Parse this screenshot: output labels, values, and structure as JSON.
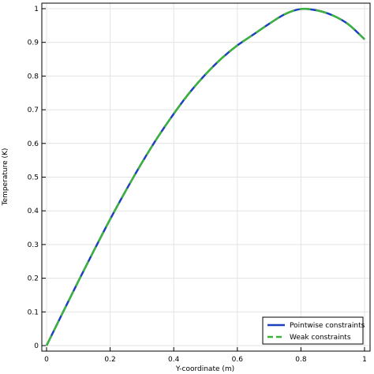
{
  "chart_data": {
    "type": "line",
    "title": "",
    "xlabel": "Y-coordinate (m)",
    "ylabel": "Temperature (K)",
    "xlim": [
      0,
      1
    ],
    "ylim": [
      0,
      1
    ],
    "x_ticks": [
      "0",
      "0.2",
      "0.4",
      "0.6",
      "0.8",
      "1"
    ],
    "y_ticks": [
      "0",
      "0.1",
      "0.2",
      "0.3",
      "0.4",
      "0.5",
      "0.6",
      "0.7",
      "0.8",
      "0.9",
      "1"
    ],
    "grid": true,
    "legend_position": "bottom-right",
    "x": [
      0,
      0.05,
      0.1,
      0.15,
      0.2,
      0.25,
      0.3,
      0.35,
      0.4,
      0.45,
      0.5,
      0.55,
      0.6,
      0.65,
      0.7,
      0.75,
      0.8,
      0.85,
      0.9,
      0.95,
      1.0
    ],
    "series": [
      {
        "name": "Pointwise constraints",
        "color": "#1f3fbf",
        "dash": "solid",
        "values": [
          0,
          0.096,
          0.191,
          0.284,
          0.375,
          0.461,
          0.543,
          0.619,
          0.688,
          0.751,
          0.805,
          0.852,
          0.891,
          0.923,
          0.955,
          0.984,
          0.999,
          0.995,
          0.98,
          0.953,
          0.909
        ]
      },
      {
        "name": "Weak constraints",
        "color": "#3cb23c",
        "dash": "dashed",
        "values": [
          0,
          0.096,
          0.191,
          0.284,
          0.375,
          0.461,
          0.543,
          0.619,
          0.688,
          0.751,
          0.805,
          0.852,
          0.891,
          0.923,
          0.955,
          0.984,
          0.999,
          0.995,
          0.98,
          0.953,
          0.909
        ]
      }
    ]
  }
}
